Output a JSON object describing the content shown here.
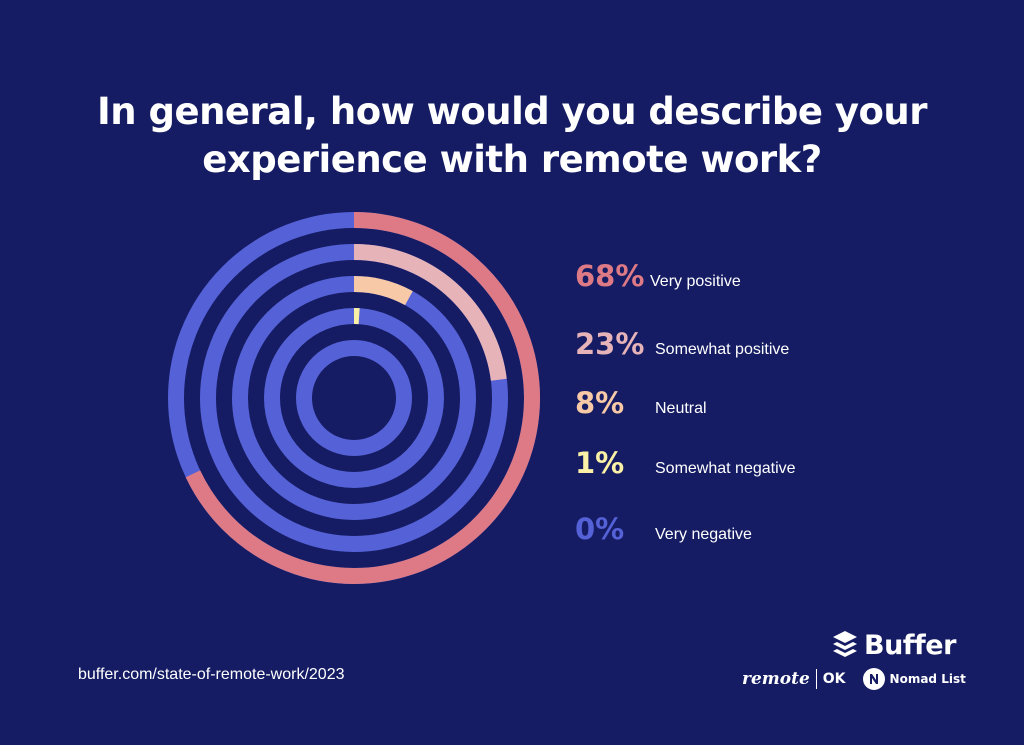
{
  "title_line1": "In general, how would you describe your",
  "title_line2": "experience with remote work?",
  "chart_data": {
    "type": "pie",
    "title": "In general, how would you describe your experience with remote work?",
    "categories": [
      "Very positive",
      "Somewhat positive",
      "Neutral",
      "Somewhat negative",
      "Very negative"
    ],
    "values": [
      68,
      23,
      8,
      1,
      0
    ],
    "labels": [
      "68%",
      "23%",
      "8%",
      "1%",
      "0%"
    ],
    "unit": "%",
    "colors": [
      "#dd7a86",
      "#e6b3b9",
      "#f7c9a7",
      "#fbf1a6",
      "#5561d6"
    ],
    "track_color": "#5561d6"
  },
  "source": "buffer.com/state-of-remote-work/2023",
  "logos": {
    "buffer": "Buffer",
    "remote": "remote",
    "ok": "OK",
    "nomad": "Nomad List"
  },
  "background": "#151c63"
}
